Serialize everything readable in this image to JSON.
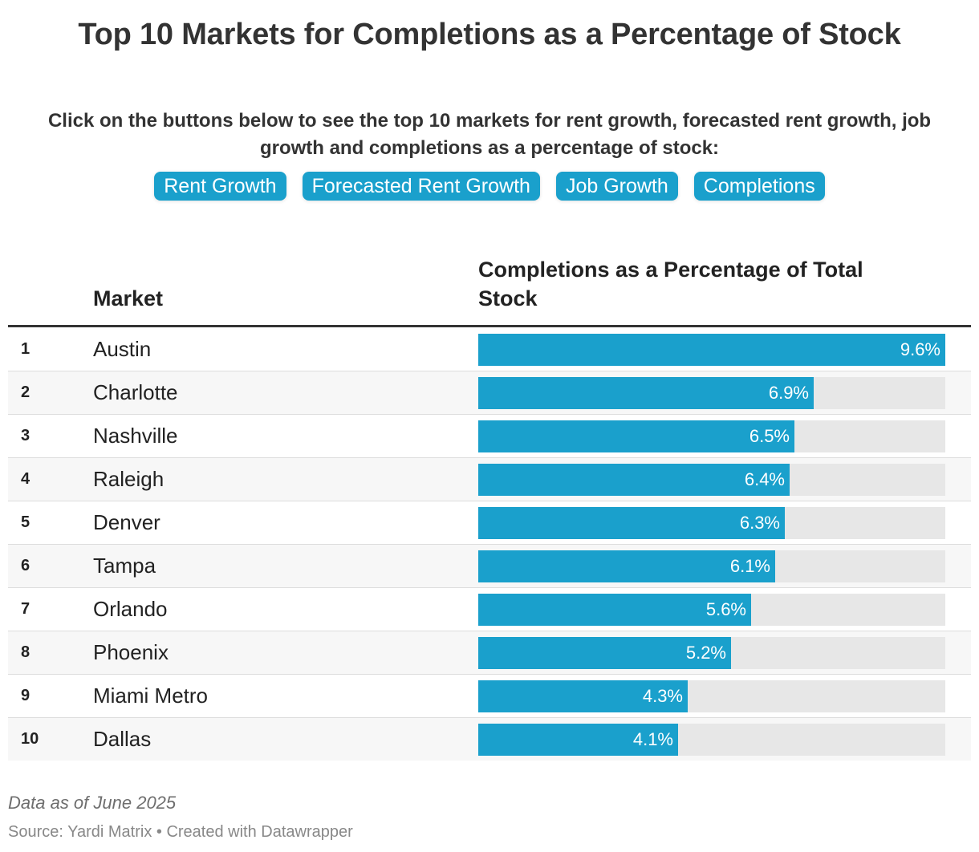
{
  "header": {
    "title": "Top 10 Markets for Completions as a Percentage of Stock",
    "intro": "Click on the buttons below to see the top 10 markets for rent growth, forecasted rent growth, job growth and completions as a percentage of stock:"
  },
  "buttons": [
    {
      "label": "Rent Growth"
    },
    {
      "label": "Forecasted Rent Growth"
    },
    {
      "label": "Job Growth"
    },
    {
      "label": "Completions"
    }
  ],
  "columns": {
    "market": "Market",
    "metric": "Completions as a Percentage of Total Stock"
  },
  "footer": {
    "note": "Data as of June 2025",
    "source": "Source: Yardi Matrix • Created with Datawrapper"
  },
  "colors": {
    "bar": "#1aa0cc",
    "track": "#e7e7e7"
  },
  "chart_data": {
    "type": "bar",
    "orientation": "horizontal",
    "title": "Top 10 Markets for Completions as a Percentage of Stock",
    "xlabel": "Completions as a Percentage of Total Stock",
    "ylabel": "Market",
    "xlim": [
      0,
      9.6
    ],
    "unit": "%",
    "ranks": [
      "1",
      "2",
      "3",
      "4",
      "5",
      "6",
      "7",
      "8",
      "9",
      "10"
    ],
    "categories": [
      "Austin",
      "Charlotte",
      "Nashville",
      "Raleigh",
      "Denver",
      "Tampa",
      "Orlando",
      "Phoenix",
      "Miami Metro",
      "Dallas"
    ],
    "values": [
      9.6,
      6.9,
      6.5,
      6.4,
      6.3,
      6.1,
      5.6,
      5.2,
      4.3,
      4.1
    ],
    "labels": [
      "9.6%",
      "6.9%",
      "6.5%",
      "6.4%",
      "6.3%",
      "6.1%",
      "5.6%",
      "5.2%",
      "4.3%",
      "4.1%"
    ]
  }
}
